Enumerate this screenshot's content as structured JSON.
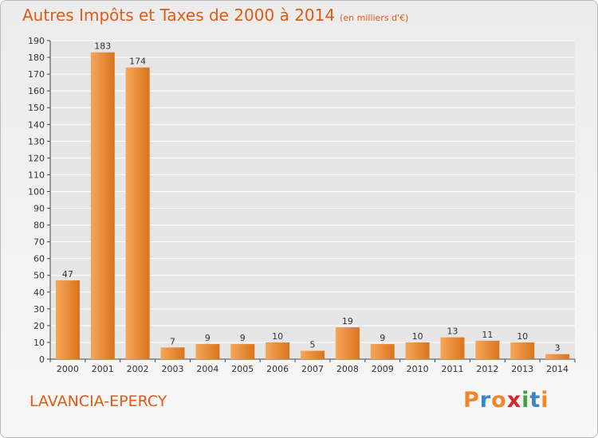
{
  "title": "Autres Impôts et Taxes de 2000 à 2014",
  "subtitle": "(en milliers d'€)",
  "commune": "LAVANCIA-EPERCY",
  "logo": {
    "text": "Proxiti",
    "colors": [
      "#f0862a",
      "#3a86c8",
      "#f0862a",
      "#d9262a",
      "#43a047",
      "#3a86c8",
      "#f0862a"
    ]
  },
  "colors": {
    "bar_light": "#f6a75a",
    "bar_dark": "#d9741f",
    "title": "#e25a14",
    "grid": "#ffffff"
  },
  "chart_data": {
    "type": "bar",
    "categories": [
      "2000",
      "2001",
      "2002",
      "2003",
      "2004",
      "2005",
      "2006",
      "2007",
      "2008",
      "2009",
      "2010",
      "2011",
      "2012",
      "2013",
      "2014"
    ],
    "values": [
      47,
      183,
      174,
      7,
      9,
      9,
      10,
      5,
      19,
      9,
      10,
      13,
      11,
      10,
      3
    ],
    "ylim": [
      0,
      190
    ],
    "yticks": [
      0,
      10,
      20,
      30,
      40,
      50,
      60,
      70,
      80,
      90,
      100,
      110,
      120,
      130,
      140,
      150,
      160,
      170,
      180,
      190
    ],
    "grid": true,
    "data_labels": true
  }
}
